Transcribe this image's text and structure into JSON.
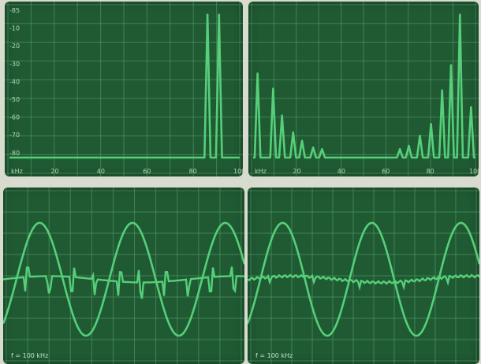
{
  "colors": {
    "screen": "#1f5a33",
    "grid": "#5fa26e",
    "trace": "#56cf7a"
  },
  "chart_data": [
    {
      "type": "line",
      "subtype": "spectrum",
      "panel": "top-left",
      "xlabel": "kHz",
      "x_ticks": [
        "kHz",
        "20",
        "40",
        "60",
        "80",
        "100"
      ],
      "y_ticks": [
        "-85",
        "-10",
        "-20",
        "-30",
        "-40",
        "-50",
        "-60",
        "-70",
        "-80"
      ],
      "xlim": [
        0,
        100
      ],
      "ylim": [
        -90,
        0
      ],
      "peaks": [
        {
          "x": 86,
          "y": -5
        },
        {
          "x": 91,
          "y": -5
        }
      ]
    },
    {
      "type": "line",
      "subtype": "spectrum",
      "panel": "top-right",
      "xlabel": "kHz",
      "x_ticks": [
        "kHz",
        "20",
        "40",
        "60",
        "80",
        "100"
      ],
      "xlim": [
        0,
        100
      ],
      "ylim": [
        -90,
        0
      ],
      "peaks": [
        {
          "x": 2,
          "y": -40
        },
        {
          "x": 9,
          "y": -49
        },
        {
          "x": 13,
          "y": -65
        },
        {
          "x": 18,
          "y": -75
        },
        {
          "x": 22,
          "y": -80
        },
        {
          "x": 27,
          "y": -84
        },
        {
          "x": 31,
          "y": -85
        },
        {
          "x": 66,
          "y": -85
        },
        {
          "x": 70,
          "y": -83
        },
        {
          "x": 75,
          "y": -77
        },
        {
          "x": 80,
          "y": -70
        },
        {
          "x": 85,
          "y": -50
        },
        {
          "x": 89,
          "y": -35
        },
        {
          "x": 93,
          "y": -5
        },
        {
          "x": 98,
          "y": -60
        }
      ]
    },
    {
      "type": "line",
      "subtype": "oscilloscope",
      "panel": "bottom-left",
      "frequency_label": "f = 100 kHz",
      "series": [
        {
          "kind": "sine",
          "cycles": 2.6
        },
        {
          "kind": "distorted-baseline"
        }
      ]
    },
    {
      "type": "line",
      "subtype": "oscilloscope",
      "panel": "bottom-right",
      "frequency_label": "f = 100 kHz",
      "series": [
        {
          "kind": "sine",
          "cycles": 2.6
        },
        {
          "kind": "clean-baseline"
        }
      ]
    }
  ]
}
